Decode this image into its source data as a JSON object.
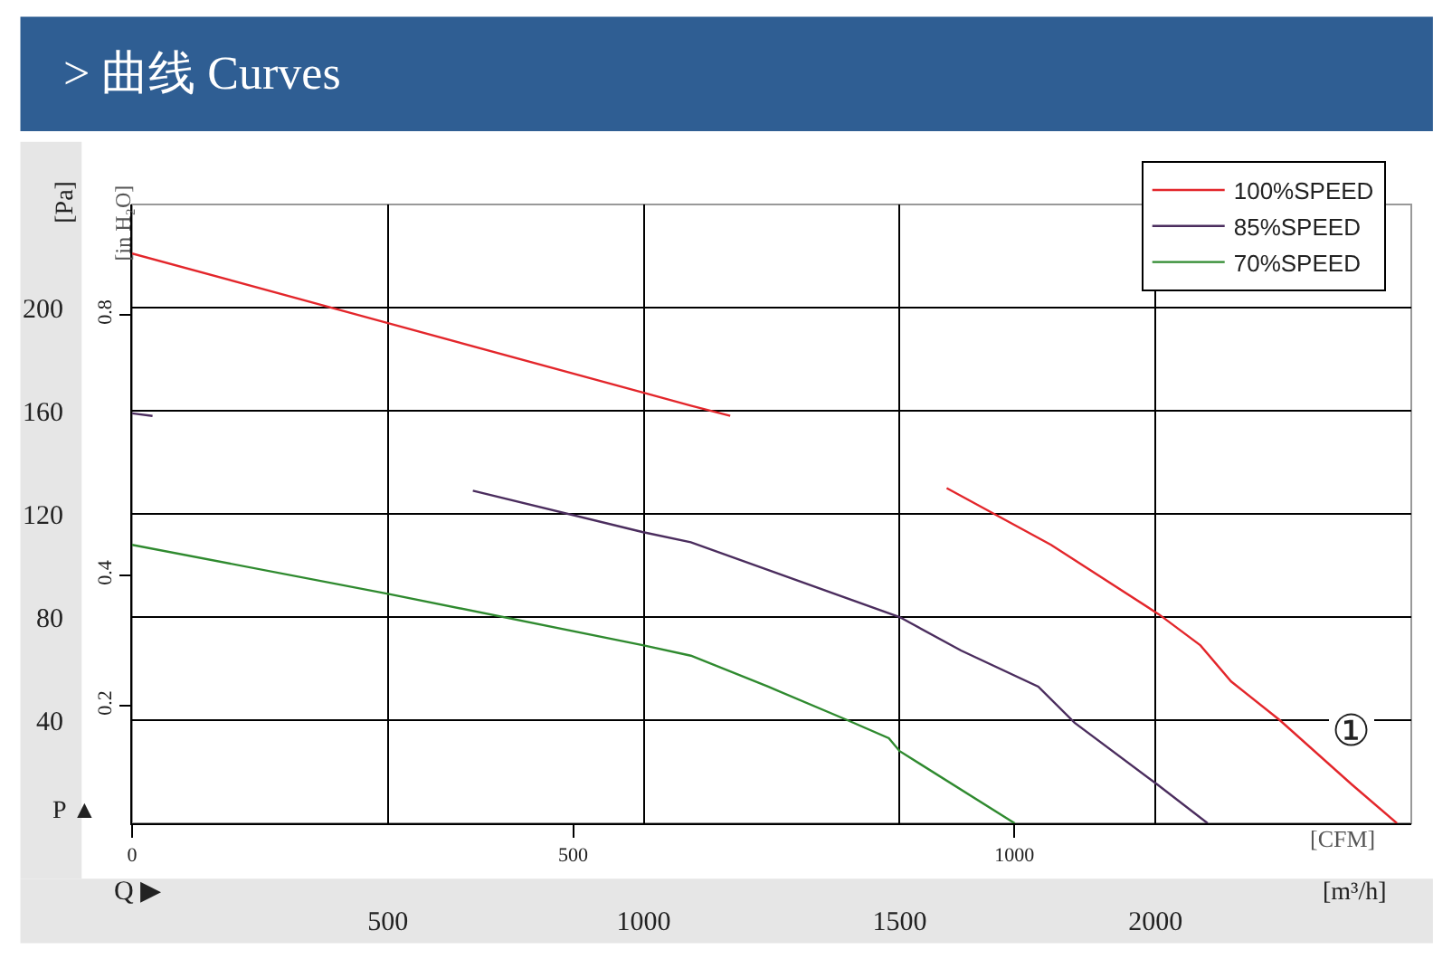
{
  "chart_data": {
    "type": "line",
    "title": "> 曲线 Curves",
    "xlabel": "[m³/h]",
    "x2label": "[CFM]",
    "ylabel": "[Pa]",
    "y2label": "[in H₂O]",
    "xlim": [
      0,
      2500
    ],
    "xticks": [
      500,
      1000,
      1500,
      2000
    ],
    "x2lim": [
      0,
      1450
    ],
    "x2ticks": [
      0,
      500,
      1000
    ],
    "ylim": [
      0,
      240
    ],
    "yticks": [
      40,
      80,
      120,
      160,
      200
    ],
    "y2lim": [
      0.02,
      0.97
    ],
    "y2ticks": [
      0.2,
      0.4,
      0.8
    ],
    "grid": true,
    "legend": "top right",
    "annotations": [
      "P ▲",
      "Q ▶",
      "①"
    ],
    "series": [
      {
        "name": "100%SPEED",
        "color": "#e3262b",
        "x": [
          0,
          500,
          1000,
          1092,
          1169,
          1380,
          1592,
          1796,
          2007,
          2088,
          2148,
          2243,
          2384,
          2472
        ],
        "values": [
          221,
          194,
          167,
          162,
          158,
          null,
          130,
          108,
          81,
          69,
          55,
          40,
          15,
          0
        ]
      },
      {
        "name": "85%SPEED",
        "color": "#4b2d5e",
        "x": [
          0,
          40,
          350,
          666,
          997,
          1092,
          1500,
          1620,
          1771,
          1842,
          2004,
          2102
        ],
        "values": [
          159,
          158,
          null,
          129,
          113,
          109,
          80,
          67,
          53,
          39,
          15,
          0
        ]
      },
      {
        "name": "70%SPEED",
        "color": "#2f8a2f",
        "x": [
          0,
          500,
          1000,
          1092,
          1243,
          1398,
          1479,
          1500,
          1725
        ],
        "values": [
          108,
          89,
          69,
          65,
          53,
          40,
          33,
          28,
          0
        ]
      }
    ]
  }
}
